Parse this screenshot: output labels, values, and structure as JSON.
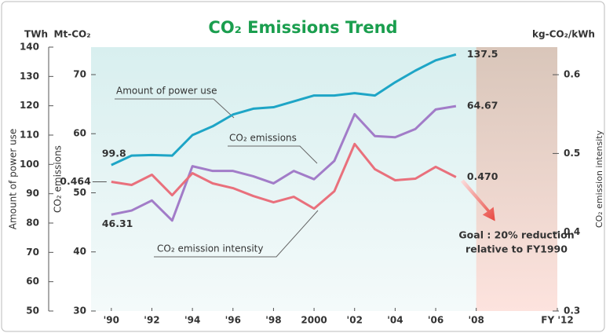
{
  "chart_data": {
    "type": "line",
    "title": "CO₂ Emissions Trend",
    "y_unit": "TWh",
    "y2_unit": "Mt-CO₂",
    "y3_unit": "kg-CO₂/kWh",
    "y_label": "Amount of power use",
    "y2_label": "CO₂ emissions",
    "y3_label": "CO₂ emission intensity",
    "annotation": [
      "Goal : 20% reduction",
      "relative to FY1990"
    ],
    "xlim": [
      1989,
      2012
    ],
    "xticks": [
      {
        "value": 1990,
        "label": "'90"
      },
      {
        "value": 1992,
        "label": "'92"
      },
      {
        "value": 1994,
        "label": "'94"
      },
      {
        "value": 1996,
        "label": "'96"
      },
      {
        "value": 1998,
        "label": "'98"
      },
      2000,
      {
        "value": 2002,
        "label": "'02"
      },
      {
        "value": 2004,
        "label": "'04"
      },
      {
        "value": 2006,
        "label": "'06"
      },
      {
        "value": 2008,
        "label": "'08"
      },
      {
        "value": 2012,
        "label": "FY '12"
      }
    ],
    "shaded_range": [
      2008,
      2012
    ],
    "ylim": [
      50,
      140
    ],
    "yticks": [
      50,
      60,
      70,
      80,
      90,
      100,
      110,
      120,
      130,
      140
    ],
    "y2lim": [
      30,
      74.65
    ],
    "y2ticks": [
      30,
      40,
      50,
      60,
      70
    ],
    "y3lim": [
      0.3,
      0.635
    ],
    "y3ticks": [
      0.3,
      0.4,
      0.5,
      0.6
    ],
    "x": [
      1990,
      1991,
      1992,
      1993,
      1994,
      1995,
      1996,
      1997,
      1998,
      1999,
      2000,
      2001,
      2002,
      2003,
      2004,
      2005,
      2006,
      2007
    ],
    "series": [
      {
        "name": "Amount of power use",
        "color": "#1ea5c6",
        "axis": "y",
        "values": [
          99.8,
          103,
          103.2,
          103,
          110,
          113,
          117,
          119,
          119.5,
          121.5,
          123.5,
          123.5,
          124.3,
          123.5,
          128,
          132,
          135.5,
          137.5
        ],
        "value_labels": [
          "99.8",
          null,
          null,
          null,
          null,
          null,
          null,
          null,
          null,
          null,
          null,
          null,
          null,
          null,
          null,
          null,
          null,
          "137.5"
        ]
      },
      {
        "name": "CO₂ emissions",
        "color": "#a27cc8",
        "axis": "y2",
        "values": [
          46.31,
          47,
          48.7,
          45.3,
          54.5,
          53.7,
          53.7,
          52.8,
          51.6,
          53.7,
          52.3,
          55.4,
          63.3,
          59.6,
          59.4,
          60.8,
          64.1,
          64.67
        ],
        "value_labels": [
          "46.31",
          null,
          null,
          null,
          null,
          null,
          null,
          null,
          null,
          null,
          null,
          null,
          null,
          null,
          null,
          null,
          null,
          "64.67"
        ]
      },
      {
        "name": "CO₂ emission intensity",
        "color": "#e9707c",
        "axis": "y3",
        "values": [
          0.464,
          0.46,
          0.473,
          0.447,
          0.475,
          0.462,
          0.456,
          0.446,
          0.438,
          0.445,
          0.43,
          0.452,
          0.512,
          0.48,
          0.466,
          0.468,
          0.483,
          0.47
        ],
        "value_labels": [
          "0.464",
          null,
          null,
          null,
          null,
          null,
          null,
          null,
          null,
          null,
          null,
          null,
          null,
          null,
          null,
          null,
          null,
          "0.470"
        ]
      }
    ]
  }
}
